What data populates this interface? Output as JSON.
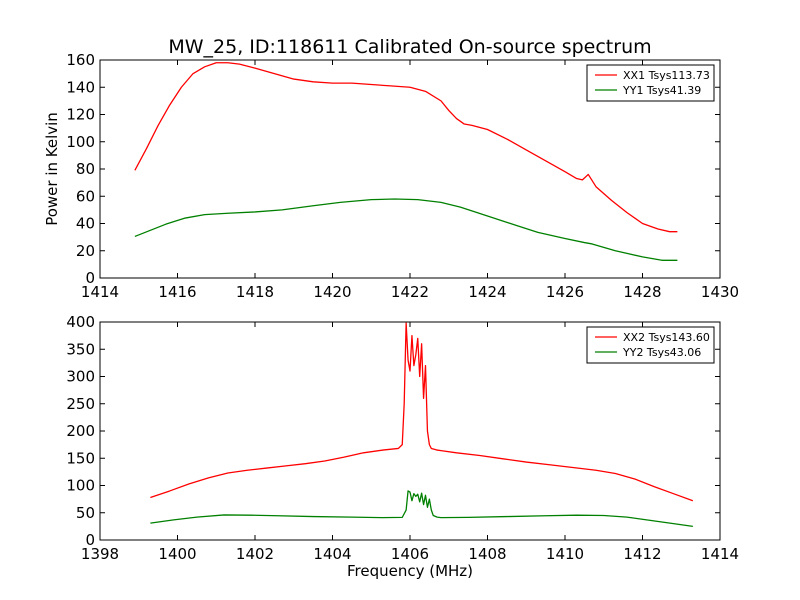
{
  "title": "MW_25, ID:118611 Calibrated On-source spectrum",
  "colors": {
    "xx": "#ff0000",
    "yy": "#008000"
  },
  "chart_data": [
    {
      "type": "line",
      "ylabel": "Power in Kelvin",
      "xlabel": "",
      "xlim": [
        1414,
        1430
      ],
      "ylim": [
        0,
        160
      ],
      "xticks": [
        "1414",
        "1416",
        "1418",
        "1420",
        "1422",
        "1424",
        "1426",
        "1428",
        "1430"
      ],
      "yticks": [
        "0",
        "20",
        "40",
        "60",
        "80",
        "100",
        "120",
        "140",
        "160"
      ],
      "legend_position": "top-right",
      "series": [
        {
          "name": "XX1 Tsys113.73",
          "color": "#ff0000",
          "x": [
            1414.9,
            1415.2,
            1415.5,
            1415.8,
            1416.1,
            1416.4,
            1416.7,
            1417.0,
            1417.3,
            1417.6,
            1418.0,
            1418.5,
            1419.0,
            1419.5,
            1420.0,
            1420.5,
            1421.0,
            1421.5,
            1422.0,
            1422.4,
            1422.8,
            1423.0,
            1423.2,
            1423.4,
            1423.6,
            1424.0,
            1424.5,
            1425.0,
            1425.5,
            1426.0,
            1426.3,
            1426.45,
            1426.6,
            1426.8,
            1427.2,
            1427.6,
            1428.0,
            1428.4,
            1428.7,
            1428.9
          ],
          "y": [
            79,
            95,
            112,
            127,
            140,
            150,
            155,
            158,
            158,
            157,
            154,
            150,
            146,
            144,
            143,
            143,
            142,
            141,
            140,
            137,
            130,
            123,
            117,
            113,
            112,
            109,
            102,
            94,
            86,
            78,
            73,
            72,
            76,
            67,
            57,
            48,
            40,
            36,
            34,
            34
          ]
        },
        {
          "name": "YY1 Tsys41.39",
          "color": "#008000",
          "x": [
            1414.9,
            1415.3,
            1415.7,
            1416.2,
            1416.7,
            1417.3,
            1418.0,
            1418.7,
            1419.5,
            1420.2,
            1421.0,
            1421.6,
            1422.2,
            1422.8,
            1423.3,
            1424.0,
            1424.7,
            1425.3,
            1426.0,
            1426.5,
            1426.7,
            1427.3,
            1428.0,
            1428.5,
            1428.9
          ],
          "y": [
            30.5,
            35,
            39.5,
            44,
            46.5,
            47.5,
            48.5,
            50,
            53,
            55.5,
            57.5,
            58,
            57.5,
            55.5,
            52,
            45.5,
            39,
            33.5,
            29,
            26,
            25,
            20,
            15.5,
            13,
            13
          ]
        }
      ]
    },
    {
      "type": "line",
      "ylabel": "",
      "xlabel": "Frequency (MHz)",
      "xlim": [
        1398,
        1414
      ],
      "ylim": [
        0,
        400
      ],
      "xticks": [
        "1398",
        "1400",
        "1402",
        "1404",
        "1406",
        "1408",
        "1410",
        "1412",
        "1414"
      ],
      "yticks": [
        "0",
        "50",
        "100",
        "150",
        "200",
        "250",
        "300",
        "350",
        "400"
      ],
      "legend_position": "top-right",
      "series": [
        {
          "name": "XX2 Tsys143.60",
          "color": "#ff0000",
          "x": [
            1399.3,
            1399.8,
            1400.3,
            1400.8,
            1401.3,
            1401.8,
            1402.3,
            1402.8,
            1403.3,
            1403.8,
            1404.3,
            1404.8,
            1405.3,
            1405.7,
            1405.8,
            1405.85,
            1405.9,
            1405.95,
            1406.0,
            1406.05,
            1406.1,
            1406.15,
            1406.2,
            1406.25,
            1406.3,
            1406.35,
            1406.4,
            1406.45,
            1406.5,
            1406.55,
            1406.6,
            1406.65,
            1406.7,
            1406.8,
            1407.2,
            1407.8,
            1408.4,
            1409.0,
            1409.6,
            1410.2,
            1410.8,
            1411.3,
            1411.8,
            1412.3,
            1412.8,
            1413.3
          ],
          "y": [
            78,
            90,
            103,
            114,
            123,
            128,
            132,
            136,
            140,
            145,
            152,
            160,
            165,
            168,
            175,
            250,
            398,
            330,
            310,
            375,
            320,
            340,
            370,
            300,
            360,
            260,
            320,
            200,
            175,
            168,
            167,
            166,
            165,
            164,
            160,
            155,
            149,
            143,
            138,
            133,
            128,
            122,
            112,
            98,
            85,
            72
          ]
        },
        {
          "name": "YY2 Tsys43.06",
          "color": "#008000",
          "x": [
            1399.3,
            1399.9,
            1400.5,
            1401.2,
            1401.9,
            1402.6,
            1403.5,
            1404.5,
            1405.3,
            1405.8,
            1405.9,
            1405.95,
            1406.0,
            1406.05,
            1406.1,
            1406.15,
            1406.2,
            1406.25,
            1406.3,
            1406.35,
            1406.4,
            1406.45,
            1406.5,
            1406.55,
            1406.6,
            1406.7,
            1406.8,
            1407.5,
            1408.5,
            1409.5,
            1410.3,
            1411.0,
            1411.6,
            1412.2,
            1412.8,
            1413.3
          ],
          "y": [
            31,
            37,
            42,
            46,
            45.5,
            44.5,
            43,
            42,
            41,
            41.5,
            55,
            90,
            88,
            72,
            85,
            80,
            84,
            70,
            86,
            65,
            82,
            60,
            75,
            55,
            45,
            42,
            41,
            41.5,
            43,
            44.5,
            45.5,
            45,
            42,
            36,
            30,
            25
          ]
        }
      ]
    }
  ]
}
